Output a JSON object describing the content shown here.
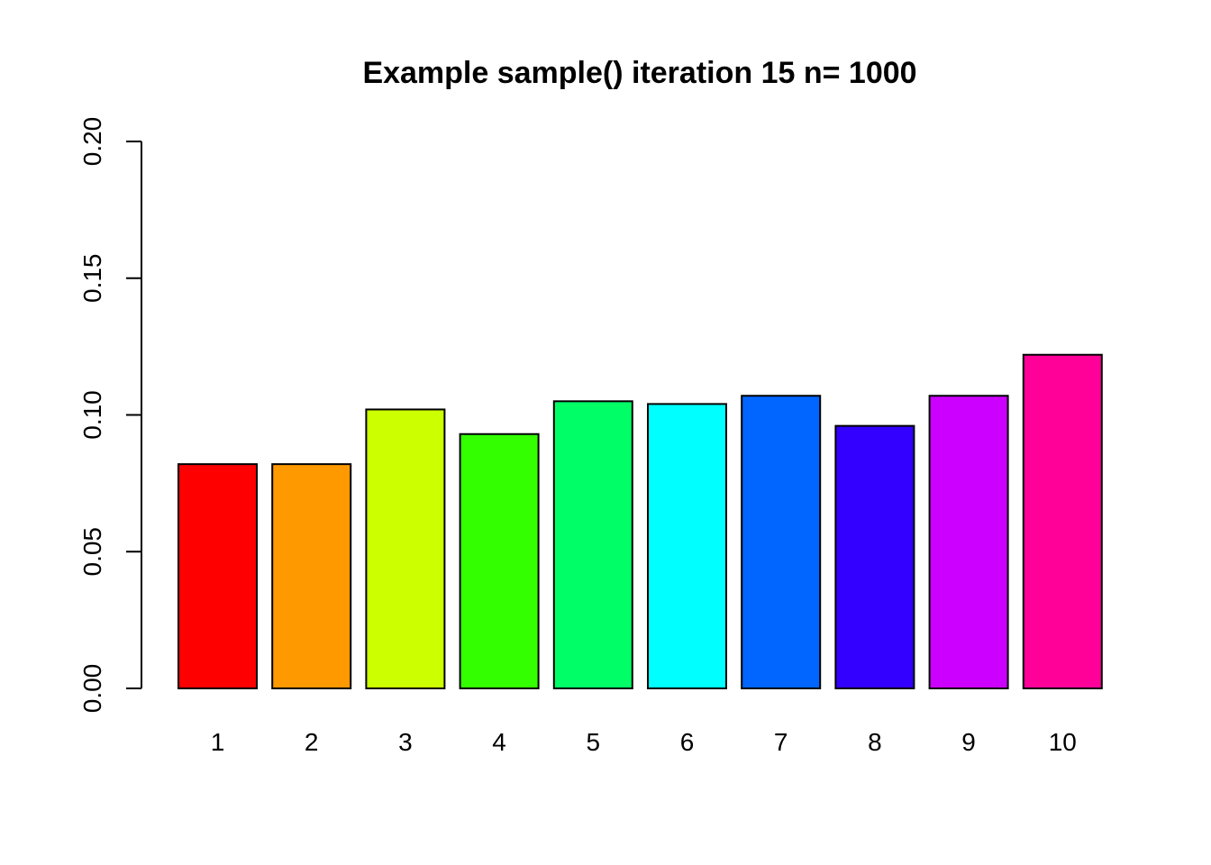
{
  "chart_data": {
    "type": "bar",
    "title": "Example sample() iteration 15 n= 1000",
    "xlabel": "",
    "ylabel": "",
    "categories": [
      "1",
      "2",
      "3",
      "4",
      "5",
      "6",
      "7",
      "8",
      "9",
      "10"
    ],
    "values": [
      0.082,
      0.082,
      0.102,
      0.093,
      0.105,
      0.104,
      0.107,
      0.096,
      0.107,
      0.122
    ],
    "colors": [
      "#FF0000",
      "#FF9900",
      "#CCFF00",
      "#33FF00",
      "#00FF66",
      "#00FFFF",
      "#0066FF",
      "#3300FF",
      "#CC00FF",
      "#FF0099"
    ],
    "ylim": [
      0,
      0.2
    ],
    "yticks": [
      "0.00",
      "0.05",
      "0.10",
      "0.15",
      "0.20"
    ],
    "grid": false,
    "legend": "none"
  }
}
